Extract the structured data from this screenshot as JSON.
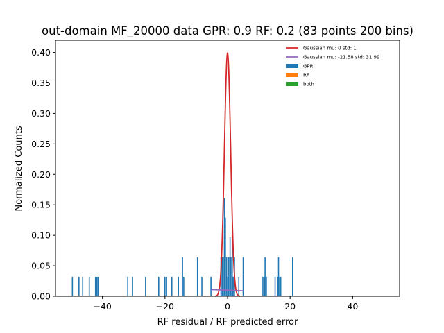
{
  "chart_data": {
    "type": "bar",
    "title": "out-domain MF_20000 data GPR: 0.9 RF: 0.2 (83 points 200 bins)",
    "xlabel": "RF residual / RF predicted error",
    "ylabel": "Normalized Counts",
    "xlim": [
      -55,
      55
    ],
    "ylim": [
      0,
      0.42
    ],
    "xticks": [
      -40,
      -20,
      0,
      20,
      40
    ],
    "xtick_labels": [
      "−40",
      "−20",
      "0",
      "20",
      "40"
    ],
    "yticks": [
      0.0,
      0.05,
      0.1,
      0.15,
      0.2,
      0.25,
      0.3,
      0.35,
      0.4
    ],
    "ytick_labels": [
      "0.00",
      "0.05",
      "0.10",
      "0.15",
      "0.20",
      "0.25",
      "0.30",
      "0.35",
      "0.40"
    ],
    "bin_width": 0.35,
    "histogram": {
      "name": "GPR",
      "color": "#1f77b4",
      "bins": [
        {
          "x": -49.6,
          "y": 0.032
        },
        {
          "x": -47.5,
          "y": 0.032
        },
        {
          "x": -46.3,
          "y": 0.032
        },
        {
          "x": -44.2,
          "y": 0.032
        },
        {
          "x": -42.2,
          "y": 0.032
        },
        {
          "x": -41.8,
          "y": 0.032
        },
        {
          "x": -41.4,
          "y": 0.032
        },
        {
          "x": -31.9,
          "y": 0.032
        },
        {
          "x": -30.4,
          "y": 0.032
        },
        {
          "x": -26.2,
          "y": 0.032
        },
        {
          "x": -22.0,
          "y": 0.032
        },
        {
          "x": -20.0,
          "y": 0.032
        },
        {
          "x": -19.5,
          "y": 0.032
        },
        {
          "x": -17.8,
          "y": 0.032
        },
        {
          "x": -15.7,
          "y": 0.032
        },
        {
          "x": -14.4,
          "y": 0.064
        },
        {
          "x": -14.0,
          "y": 0.032
        },
        {
          "x": -9.6,
          "y": 0.064
        },
        {
          "x": -8.2,
          "y": 0.032
        },
        {
          "x": -5.3,
          "y": 0.032
        },
        {
          "x": -2.1,
          "y": 0.064
        },
        {
          "x": -1.7,
          "y": 0.064
        },
        {
          "x": -1.4,
          "y": 0.064
        },
        {
          "x": -1.0,
          "y": 0.161
        },
        {
          "x": -0.7,
          "y": 0.129
        },
        {
          "x": -0.3,
          "y": 0.064
        },
        {
          "x": 0.1,
          "y": 0.032
        },
        {
          "x": 0.4,
          "y": 0.064
        },
        {
          "x": 0.8,
          "y": 0.097
        },
        {
          "x": 1.1,
          "y": 0.064
        },
        {
          "x": 1.5,
          "y": 0.097
        },
        {
          "x": 1.8,
          "y": 0.032
        },
        {
          "x": 2.2,
          "y": 0.064
        },
        {
          "x": 3.6,
          "y": 0.032
        },
        {
          "x": 5.0,
          "y": 0.064
        },
        {
          "x": 11.3,
          "y": 0.032
        },
        {
          "x": 11.7,
          "y": 0.032
        },
        {
          "x": 12.0,
          "y": 0.064
        },
        {
          "x": 12.4,
          "y": 0.032
        },
        {
          "x": 15.2,
          "y": 0.032
        },
        {
          "x": 16.0,
          "y": 0.032
        },
        {
          "x": 16.3,
          "y": 0.064
        },
        {
          "x": 16.7,
          "y": 0.032
        },
        {
          "x": 17.0,
          "y": 0.032
        },
        {
          "x": 20.8,
          "y": 0.064
        }
      ]
    },
    "series": [
      {
        "name": "Gaussian mu: 0 std: 1",
        "kind": "gaussian",
        "mu": 0,
        "std": 1,
        "x_range": [
          -4,
          4
        ],
        "color": "#d62728"
      },
      {
        "name": "Gaussian mu: -21.58 std: 31.99",
        "kind": "gaussian",
        "mu": -21.58,
        "std": 31.99,
        "x_range": [
          -5.3,
          5.0
        ],
        "color": "#9467bd"
      },
      {
        "name": "GPR",
        "kind": "bar",
        "color": "#1f77b4"
      },
      {
        "name": "RF",
        "kind": "bar",
        "color": "#ff7f0e"
      },
      {
        "name": "both",
        "kind": "bar",
        "color": "#2ca02c"
      }
    ],
    "legend": {
      "position": "top-right"
    },
    "grid": false
  }
}
